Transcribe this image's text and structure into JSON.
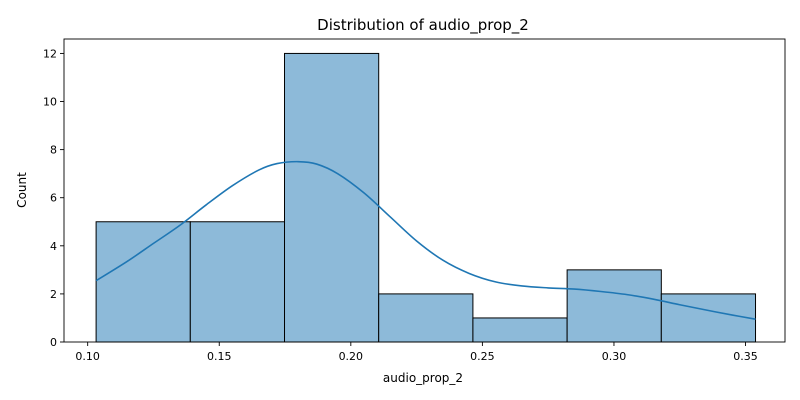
{
  "chart_data": {
    "type": "histogram",
    "title": "Distribution of audio_prop_2",
    "xlabel": "audio_prop_2",
    "ylabel": "Count",
    "xlim": [
      0.091,
      0.365
    ],
    "ylim": [
      0,
      12.6
    ],
    "bins": [
      {
        "start": 0.1032,
        "end": 0.139,
        "count": 5
      },
      {
        "start": 0.139,
        "end": 0.1748,
        "count": 5
      },
      {
        "start": 0.1748,
        "end": 0.2106,
        "count": 12
      },
      {
        "start": 0.2106,
        "end": 0.2464,
        "count": 2
      },
      {
        "start": 0.2464,
        "end": 0.2822,
        "count": 1
      },
      {
        "start": 0.2822,
        "end": 0.318,
        "count": 3
      },
      {
        "start": 0.318,
        "end": 0.3538,
        "count": 2
      }
    ],
    "xticks": [
      {
        "value": 0.1,
        "label": "0.10"
      },
      {
        "value": 0.15,
        "label": "0.15"
      },
      {
        "value": 0.2,
        "label": "0.20"
      },
      {
        "value": 0.25,
        "label": "0.25"
      },
      {
        "value": 0.3,
        "label": "0.30"
      },
      {
        "value": 0.35,
        "label": "0.35"
      }
    ],
    "yticks": [
      {
        "value": 0,
        "label": "0"
      },
      {
        "value": 2,
        "label": "2"
      },
      {
        "value": 4,
        "label": "4"
      },
      {
        "value": 6,
        "label": "6"
      },
      {
        "value": 8,
        "label": "8"
      },
      {
        "value": 10,
        "label": "10"
      },
      {
        "value": 12,
        "label": "12"
      }
    ],
    "kde": {
      "x": [
        0.1032,
        0.115,
        0.125,
        0.135,
        0.145,
        0.155,
        0.165,
        0.172,
        0.18,
        0.187,
        0.195,
        0.205,
        0.215,
        0.225,
        0.235,
        0.245,
        0.255,
        0.265,
        0.275,
        0.285,
        0.295,
        0.305,
        0.315,
        0.325,
        0.335,
        0.345,
        0.3538
      ],
      "y": [
        2.55,
        3.35,
        4.1,
        4.85,
        5.7,
        6.5,
        7.15,
        7.42,
        7.5,
        7.4,
        7.0,
        6.2,
        5.2,
        4.2,
        3.4,
        2.85,
        2.5,
        2.33,
        2.25,
        2.2,
        2.1,
        1.97,
        1.78,
        1.55,
        1.33,
        1.12,
        0.95
      ]
    },
    "bar_color": "#8dbad9",
    "line_color": "#1f77b4",
    "grid": false,
    "legend": "none"
  }
}
